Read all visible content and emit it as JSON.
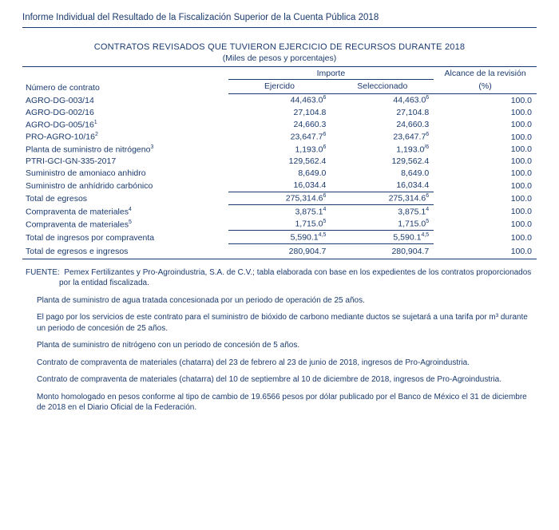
{
  "header": {
    "title": "Informe Individual del Resultado de la Fiscalización Superior de la Cuenta Pública 2018"
  },
  "table": {
    "title": "CONTRATOS REVISADOS QUE TUVIERON EJERCICIO DE RECURSOS DURANTE 2018",
    "subtitle": "(Miles de pesos y porcentajes)",
    "headers": {
      "contract": "Número de contrato",
      "importe": "Importe",
      "alcance_top": "Alcance de la revisión",
      "ejercido": "Ejercido",
      "seleccionado": "Seleccionado",
      "alcance_pct": "(%)"
    },
    "rows_a": [
      {
        "label": "AGRO-DG-003/14",
        "sup": "",
        "ej": "44,463.0",
        "ej_sup": "6",
        "sel": "44,463.0",
        "sel_sup": "6",
        "alc": "100.0"
      },
      {
        "label": "AGRO-DG-002/16",
        "sup": "",
        "ej": "27,104.8",
        "ej_sup": "",
        "sel": "27,104.8",
        "sel_sup": "",
        "alc": "100.0"
      },
      {
        "label": "AGRO-DG-005/16",
        "sup": "1",
        "ej": "24,660.3",
        "ej_sup": "",
        "sel": "24,660.3",
        "sel_sup": "",
        "alc": "100.0"
      },
      {
        "label": "PRO-AGRO-10/16",
        "sup": "2",
        "ej": "23,647.7",
        "ej_sup": "6",
        "sel": "23,647.7",
        "sel_sup": "6",
        "alc": "100.0"
      },
      {
        "label": "Planta de suministro de nitrógeno",
        "sup": "3",
        "ej": "1,193.0",
        "ej_sup": "6",
        "sel": "1,193.0",
        "sel_sup": "/6",
        "alc": "100.0"
      },
      {
        "label": "PTRI-GCI-GN-335-2017",
        "sup": "",
        "ej": "129,562.4",
        "ej_sup": "",
        "sel": "129,562.4",
        "sel_sup": "",
        "alc": "100.0"
      },
      {
        "label": "Suministro de amoniaco anhidro",
        "sup": "",
        "ej": "8,649.0",
        "ej_sup": "",
        "sel": "8,649.0",
        "sel_sup": "",
        "alc": "100.0"
      },
      {
        "label": "Suministro de anhídrido carbónico",
        "sup": "",
        "ej": "16,034.4",
        "ej_sup": "",
        "sel": "16,034.4",
        "sel_sup": "",
        "alc": "100.0"
      }
    ],
    "subtotal_a": {
      "label": "Total de egresos",
      "ej": "275,314.6",
      "ej_sup": "6",
      "sel": "275,314.6",
      "sel_sup": "6",
      "alc": "100.0"
    },
    "rows_b": [
      {
        "label": "Compraventa de materiales",
        "sup": "4",
        "ej": "3,875.1",
        "ej_sup": "4",
        "sel": "3,875.1",
        "sel_sup": "4",
        "alc": "100.0"
      },
      {
        "label": "Compraventa de materiales",
        "sup": "5",
        "ej": "1,715.0",
        "ej_sup": "5",
        "sel": "1,715.0",
        "sel_sup": "5",
        "alc": "100.0"
      }
    ],
    "subtotal_b": {
      "label": "Total de ingresos por compraventa",
      "ej": "5,590.1",
      "ej_sup": "4,5",
      "sel": "5,590.1",
      "sel_sup": "4,5",
      "alc": "100.0"
    },
    "grand": {
      "label": "Total de egresos e ingresos",
      "ej": "280,904.7",
      "sel": "280,904.7",
      "alc": "100.0"
    }
  },
  "notes": {
    "source_label": "FUENTE:",
    "source": "Pemex Fertilizantes y Pro-Agroindustria, S.A. de C.V.; tabla elaborada con base en los expedientes de los contratos proporcionados por la entidad fiscalizada.",
    "items": [
      "Planta de suministro de agua tratada concesionada por un periodo de operación de 25 años.",
      "El pago por los servicios de este contrato para el suministro de bióxido de carbono mediante ductos se sujetará a una tarifa por m³ durante un periodo de concesión de 25 años.",
      "Planta de suministro de nitrógeno con un periodo de concesión de 5 años.",
      "Contrato de compraventa de materiales (chatarra) del 23 de febrero al 23 de junio de 2018, ingresos de Pro-Agroindustria.",
      "Contrato de compraventa de materiales (chatarra) del 10 de septiembre al 10 de diciembre de 2018, ingresos de Pro-Agroindustria.",
      "Monto homologado en pesos conforme al tipo de cambio de 19.6566 pesos por dólar publicado por el Banco de México el 31 de diciembre de 2018 en el Diario Oficial de la Federación."
    ]
  }
}
